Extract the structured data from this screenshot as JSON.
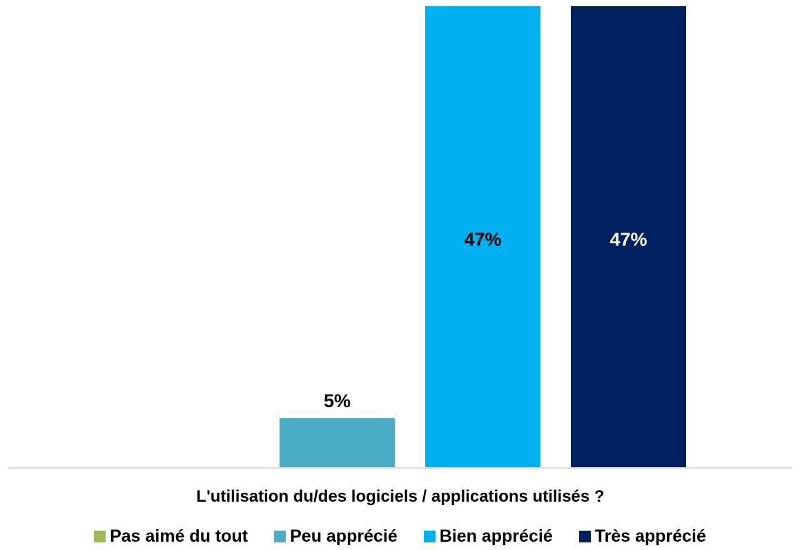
{
  "chart_data": {
    "type": "bar",
    "categories": [
      "L'utilisation du/des logiciels / applications utilisés ?"
    ],
    "xlabel": "L'utilisation du/des logiciels / applications utilisés ?",
    "ylim": [
      0,
      47
    ],
    "grid": false,
    "legend_position": "bottom",
    "series": [
      {
        "name": "Pas aimé du tout",
        "value": 0,
        "label": "",
        "color": "#9bbb59",
        "label_color": "#000000"
      },
      {
        "name": "Peu apprécié",
        "value": 5,
        "label": "5%",
        "color": "#4bacc6",
        "label_color": "#000000"
      },
      {
        "name": "Bien apprécié",
        "value": 47,
        "label": "47%",
        "color": "#00b0f0",
        "label_color": "#000000"
      },
      {
        "name": "Très apprécié",
        "value": 47,
        "label": "47%",
        "color": "#002060",
        "label_color": "#ffffff"
      }
    ]
  }
}
